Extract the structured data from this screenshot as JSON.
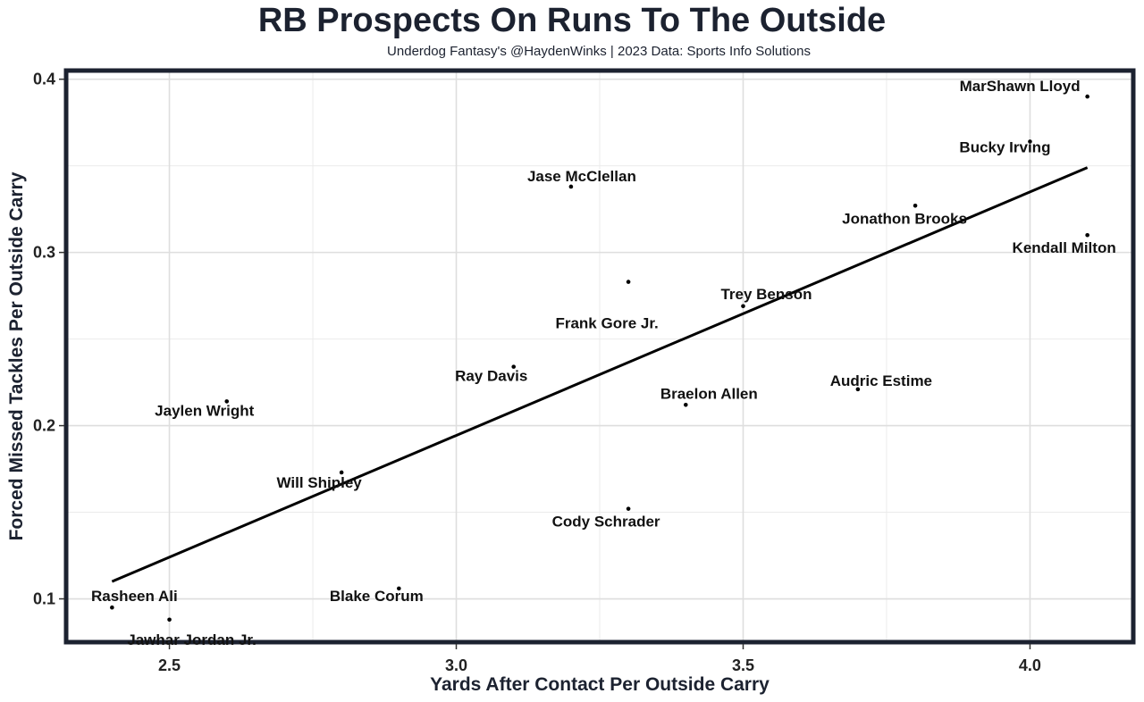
{
  "chart_data": {
    "type": "scatter",
    "title": "RB Prospects On Runs To The Outside",
    "subtitle": "Underdog Fantasy's @HaydenWinks | 2023 Data: Sports Info Solutions",
    "xlabel": "Yards After Contact Per Outside Carry",
    "ylabel": "Forced Missed Tackles Per Outside Carry",
    "xlim": [
      2.32,
      4.18
    ],
    "ylim": [
      0.075,
      0.405
    ],
    "xticks": [
      2.5,
      3.0,
      3.5,
      4.0
    ],
    "xtick_labels": [
      "2.5",
      "3.0",
      "3.5",
      "4.0"
    ],
    "yticks": [
      0.1,
      0.2,
      0.3,
      0.4
    ],
    "ytick_labels": [
      "0.1",
      "0.2",
      "0.3",
      "0.4"
    ],
    "grid": true,
    "points": [
      {
        "name": "MarShawn Lloyd",
        "x": 4.1,
        "y": 0.39
      },
      {
        "name": "Bucky Irving",
        "x": 4.0,
        "y": 0.364
      },
      {
        "name": "Jonathon Brooks",
        "x": 3.8,
        "y": 0.327
      },
      {
        "name": "Kendall Milton",
        "x": 4.1,
        "y": 0.31
      },
      {
        "name": "Jase McClellan",
        "x": 3.2,
        "y": 0.338
      },
      {
        "name": "Frank Gore Jr.",
        "x": 3.3,
        "y": 0.283
      },
      {
        "name": "Trey Benson",
        "x": 3.5,
        "y": 0.269
      },
      {
        "name": "Ray Davis",
        "x": 3.1,
        "y": 0.234
      },
      {
        "name": "Audric Estime",
        "x": 3.7,
        "y": 0.221
      },
      {
        "name": "Braelon Allen",
        "x": 3.4,
        "y": 0.212
      },
      {
        "name": "Jaylen Wright",
        "x": 2.6,
        "y": 0.214
      },
      {
        "name": "Will Shipley",
        "x": 2.8,
        "y": 0.173
      },
      {
        "name": "Cody Schrader",
        "x": 3.3,
        "y": 0.152
      },
      {
        "name": "Blake Corum",
        "x": 2.9,
        "y": 0.106
      },
      {
        "name": "Rasheen Ali",
        "x": 2.4,
        "y": 0.095
      },
      {
        "name": "Jawhar Jordan Jr.",
        "x": 2.5,
        "y": 0.088
      }
    ],
    "trendline": {
      "x": [
        2.4,
        4.1
      ],
      "y": [
        0.11,
        0.349
      ]
    }
  }
}
